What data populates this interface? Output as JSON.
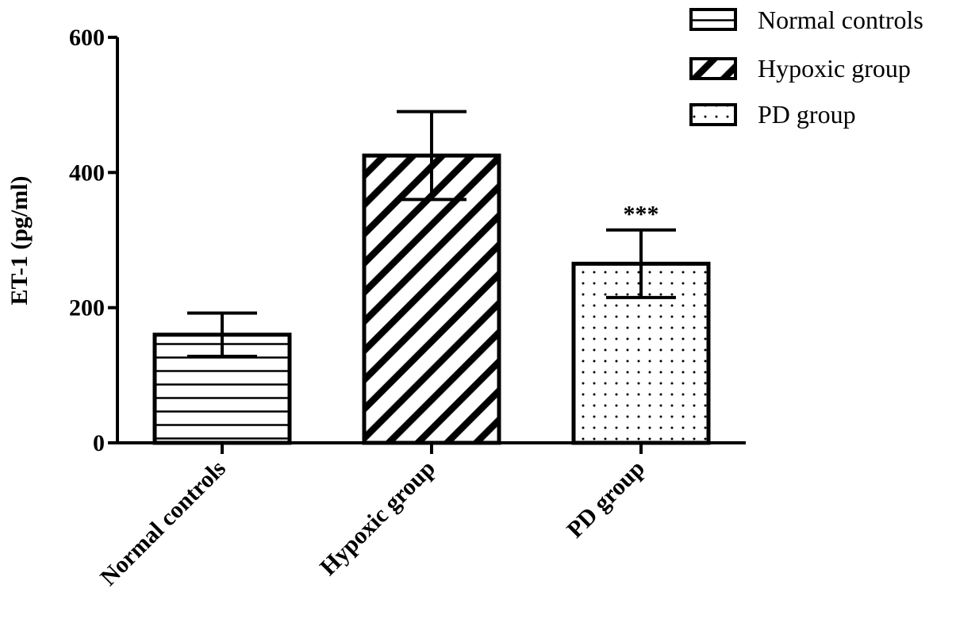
{
  "chart_data": {
    "type": "bar",
    "title": "",
    "xlabel": "",
    "ylabel": "ET-1 (pg/ml)",
    "ylim": [
      0,
      600
    ],
    "yticks": [
      0,
      200,
      400,
      600
    ],
    "grid": false,
    "legend_position": "top-right",
    "categories": [
      "Normal controls",
      "Hypoxic group",
      "PD group"
    ],
    "values": [
      160,
      425,
      265
    ],
    "errors": [
      32,
      65,
      50
    ],
    "patterns": [
      "horizontal-lines",
      "diagonal-lines",
      "dots"
    ],
    "annotations": [
      "",
      "",
      "***"
    ],
    "legend": [
      "Normal controls",
      "Hypoxic group",
      "PD group"
    ],
    "colors": {
      "stroke": "#000000",
      "fill": "#ffffff"
    }
  }
}
